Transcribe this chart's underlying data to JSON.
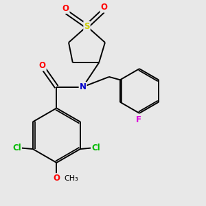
{
  "bg_color": "#e8e8e8",
  "bond_color": "#000000",
  "atom_colors": {
    "O": "#ff0000",
    "N": "#0000cc",
    "S": "#cccc00",
    "Cl": "#00bb00",
    "F": "#dd00dd",
    "C": "#000000"
  },
  "lw": 1.4,
  "fs": 8.5,
  "figsize": [
    3.0,
    3.0
  ],
  "dpi": 100
}
